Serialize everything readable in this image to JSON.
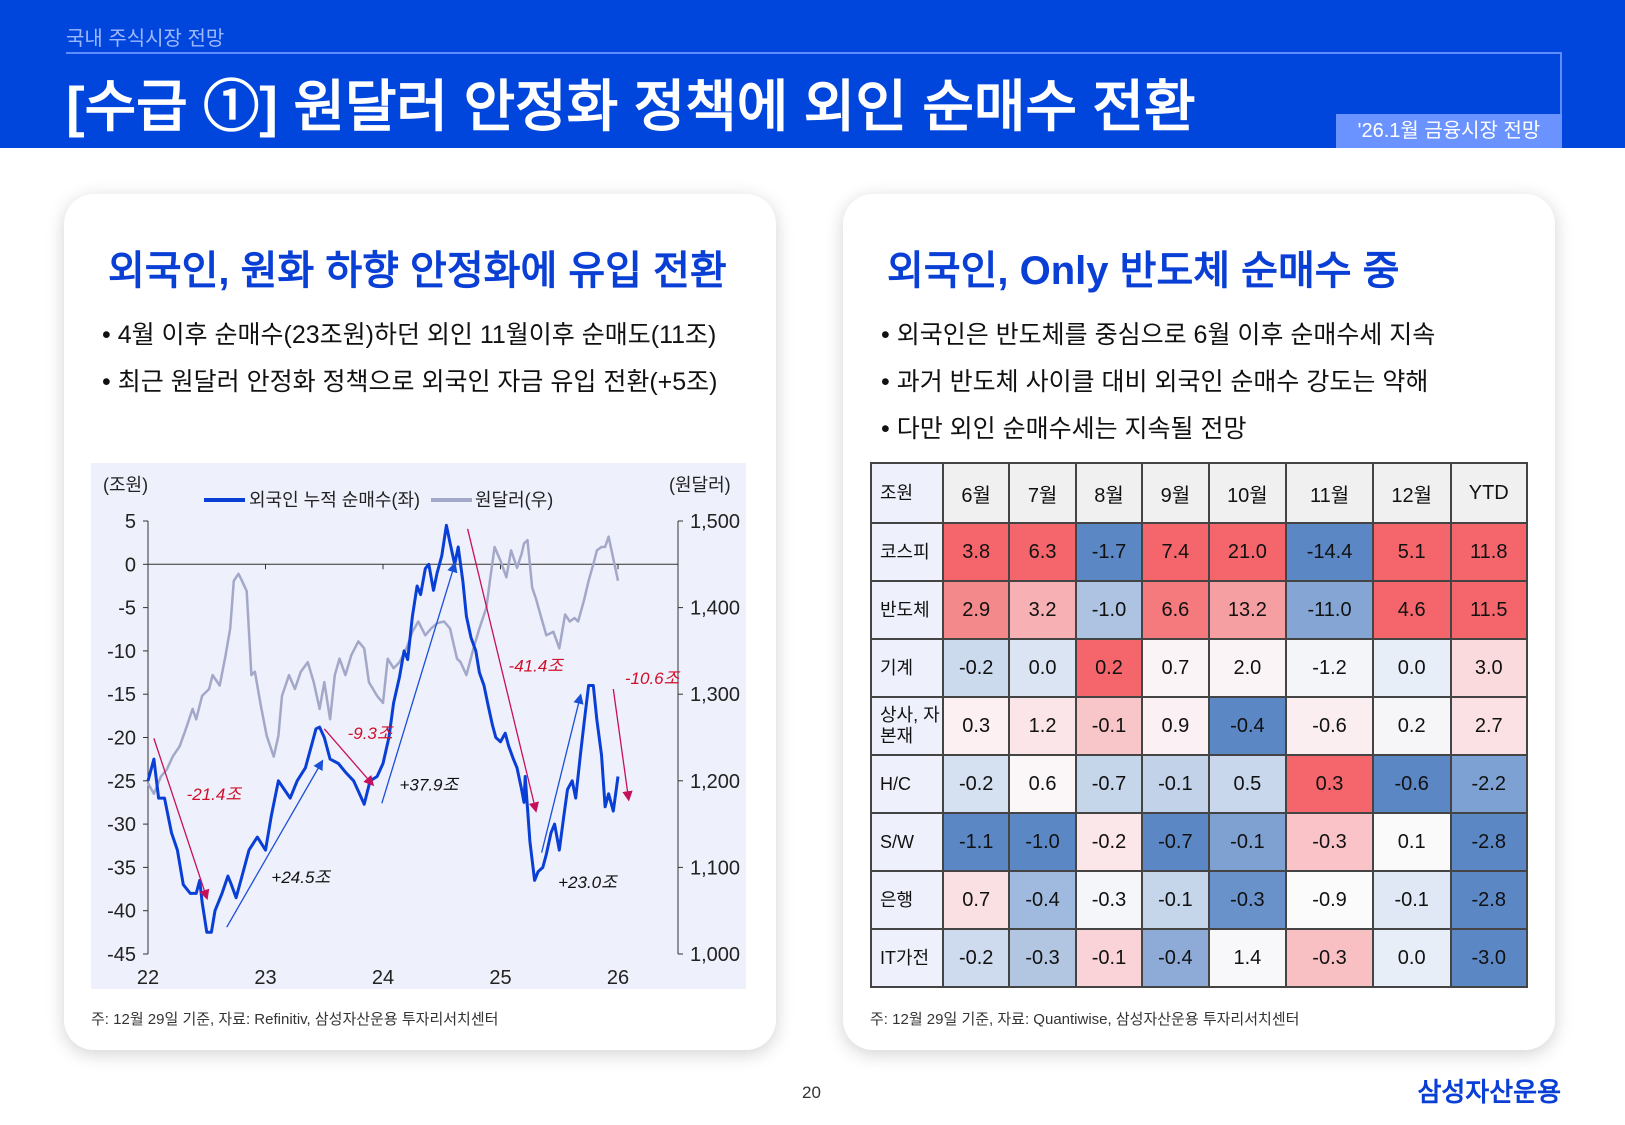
{
  "header": {
    "breadcrumb": "국내 주식시장 전망",
    "title": "[수급 ①] 원달러 안정화 정책에 외인 순매수 전환",
    "tag": "'26.1월 금융시장 전망",
    "colors": {
      "bg": "#0046dd",
      "tag": "#6b93ff"
    }
  },
  "left": {
    "heading": "외국인, 원화 하향 안정화에 유입 전환",
    "bullets": [
      "4월 이후 순매수(23조원)하던 외인 11월이후 순매도(11조)",
      "최근 원달러 안정화 정책으로 외국인 자금 유입 전환(+5조)"
    ],
    "footnote": "주: 12월 29일 기준, 자료: Refinitiv, 삼성자산운용 투자리서치센터"
  },
  "chart_data": {
    "type": "line",
    "ylabel_left": "(조원)",
    "ylabel_right": "(원달러)",
    "x_ticks": [
      "22",
      "23",
      "24",
      "25",
      "26"
    ],
    "xlim": [
      22,
      26.5
    ],
    "y_left": {
      "lim": [
        -45,
        5
      ],
      "ticks": [
        "5",
        "0",
        "-5",
        "-10",
        "-15",
        "-20",
        "-25",
        "-30",
        "-35",
        "-40",
        "-45"
      ]
    },
    "y_right": {
      "lim": [
        1000,
        1500
      ],
      "ticks": [
        "1,500",
        "1,400",
        "1,300",
        "1,200",
        "1,100",
        "1,000"
      ]
    },
    "legend_placement": "top",
    "series": [
      {
        "name": "외국인 누적 순매수(좌)",
        "axis": "left",
        "color": "#0a3fd6",
        "x": [
          22.0,
          22.05,
          22.09,
          22.14,
          22.2,
          22.25,
          22.3,
          22.36,
          22.41,
          22.44,
          22.46,
          22.5,
          22.54,
          22.57,
          22.63,
          22.68,
          22.71,
          22.75,
          22.8,
          22.86,
          22.93,
          23.0,
          23.05,
          23.11,
          23.16,
          23.21,
          23.27,
          23.34,
          23.39,
          23.43,
          23.46,
          23.5,
          23.55,
          23.62,
          23.68,
          23.75,
          23.8,
          23.84,
          23.89,
          23.95,
          24.0,
          24.05,
          24.09,
          24.14,
          24.18,
          24.21,
          24.25,
          24.29,
          24.32,
          24.36,
          24.39,
          24.43,
          24.46,
          24.5,
          24.54,
          24.57,
          24.61,
          24.64,
          24.68,
          24.71,
          24.75,
          24.79,
          24.82,
          24.86,
          24.89,
          24.93,
          24.96,
          25.0,
          25.04,
          25.07,
          25.11,
          25.14,
          25.18,
          25.2,
          25.21,
          25.25,
          25.29,
          25.32,
          25.36,
          25.39,
          25.43,
          25.46,
          25.5,
          25.54,
          25.57,
          25.61,
          25.64,
          25.68,
          25.71,
          25.75,
          25.79,
          25.82,
          25.86,
          25.89,
          25.92,
          25.96,
          26.0
        ],
        "y": [
          -25,
          -22.5,
          -27,
          -27,
          -31,
          -33,
          -37,
          -38,
          -38,
          -36.5,
          -39,
          -42.5,
          -42.5,
          -40,
          -38,
          -36,
          -37,
          -38.5,
          -36,
          -33,
          -31.5,
          -33,
          -29,
          -25,
          -26,
          -27,
          -25,
          -23.5,
          -21,
          -19,
          -18.8,
          -20,
          -22.5,
          -23,
          -24,
          -25,
          -26.5,
          -27.7,
          -25,
          -24.5,
          -23,
          -20,
          -16,
          -13,
          -10,
          -11,
          -6,
          -2.5,
          -3.5,
          -0.5,
          0,
          -3,
          -1,
          1,
          4.5,
          2.5,
          0,
          2,
          -2,
          -6,
          -8.5,
          -10,
          -12.5,
          -14,
          -16,
          -18.5,
          -20,
          -20.5,
          -19.5,
          -21,
          -22.5,
          -23.5,
          -26,
          -27.5,
          -24.5,
          -32,
          -36.5,
          -35.5,
          -35,
          -33.5,
          -31,
          -30,
          -33,
          -29,
          -26,
          -25,
          -27,
          -22,
          -18.5,
          -14,
          -14,
          -18,
          -22,
          -28,
          -26.5,
          -28.5,
          -24.5
        ]
      },
      {
        "name": "원달러(우)",
        "axis": "right",
        "color": "#a3a8c9",
        "x": [
          22.0,
          22.05,
          22.11,
          22.16,
          22.21,
          22.27,
          22.32,
          22.38,
          22.41,
          22.46,
          22.52,
          22.55,
          22.61,
          22.66,
          22.7,
          22.73,
          22.77,
          22.8,
          22.84,
          22.88,
          22.91,
          22.96,
          23.01,
          23.07,
          23.11,
          23.14,
          23.2,
          23.25,
          23.3,
          23.36,
          23.41,
          23.46,
          23.5,
          23.55,
          23.59,
          23.63,
          23.68,
          23.73,
          23.79,
          23.84,
          23.88,
          23.95,
          24.0,
          24.04,
          24.09,
          24.14,
          24.2,
          24.25,
          24.3,
          24.36,
          24.41,
          24.46,
          24.52,
          24.57,
          24.63,
          24.66,
          24.71,
          24.77,
          24.82,
          24.88,
          24.91,
          24.95,
          25.0,
          25.05,
          25.09,
          25.14,
          25.18,
          25.2,
          25.23,
          25.27,
          25.3,
          25.34,
          25.39,
          25.45,
          25.5,
          25.55,
          25.59,
          25.63,
          25.66,
          25.71,
          25.75,
          25.79,
          25.82,
          25.86,
          25.89,
          25.92,
          26.0
        ],
        "y": [
          1197,
          1185,
          1205,
          1213,
          1228,
          1240,
          1259,
          1283,
          1271,
          1298,
          1306,
          1322,
          1310,
          1345,
          1376,
          1431,
          1439,
          1431,
          1419,
          1322,
          1326,
          1287,
          1252,
          1228,
          1252,
          1298,
          1322,
          1306,
          1326,
          1337,
          1314,
          1283,
          1314,
          1271,
          1322,
          1341,
          1322,
          1345,
          1361,
          1353,
          1314,
          1298,
          1290,
          1341,
          1330,
          1337,
          1353,
          1372,
          1384,
          1368,
          1376,
          1382,
          1384,
          1376,
          1341,
          1337,
          1322,
          1353,
          1376,
          1400,
          1431,
          1470,
          1454,
          1435,
          1466,
          1446,
          1462,
          1474,
          1478,
          1423,
          1411,
          1392,
          1368,
          1372,
          1353,
          1392,
          1384,
          1388,
          1384,
          1408,
          1431,
          1450,
          1466,
          1470,
          1470,
          1482,
          1431
        ]
      }
    ],
    "annotations": [
      {
        "text": "-21.4조",
        "color": "#d0102a",
        "arrow_color": "#c8105a",
        "from": [
          22.05,
          -20.1
        ],
        "to": [
          22.5,
          -38.5
        ],
        "label_at": [
          22.56,
          -27.2
        ]
      },
      {
        "text": "-9.3조",
        "color": "#d0102a",
        "arrow_color": "#c8105a",
        "from": [
          23.5,
          -19.0
        ],
        "to": [
          23.91,
          -25.4
        ],
        "label_at": [
          23.89,
          -20.2
        ]
      },
      {
        "text": "-41.4조",
        "color": "#d0102a",
        "arrow_color": "#c8105a",
        "from": [
          24.72,
          4.1
        ],
        "to": [
          25.3,
          -28.4
        ],
        "label_at": [
          25.3,
          -12.4
        ]
      },
      {
        "text": "-10.6조",
        "color": "#d0102a",
        "arrow_color": "#c8105a",
        "from": [
          25.96,
          -14.4
        ],
        "to": [
          26.09,
          -27.1
        ],
        "label_at": [
          26.29,
          -13.8
        ]
      },
      {
        "text": "+24.5조",
        "color": "#111111",
        "arrow_color": "#1a4fd8",
        "from": [
          22.67,
          -41.9
        ],
        "to": [
          23.48,
          -22.8
        ],
        "label_at": [
          23.3,
          -36.8
        ]
      },
      {
        "text": "+37.9조",
        "color": "#111111",
        "arrow_color": "#1a4fd8",
        "from": [
          23.99,
          -27.6
        ],
        "to": [
          24.61,
          0.0
        ],
        "label_at": [
          24.39,
          -26.1
        ]
      },
      {
        "text": "+23.0조",
        "color": "#111111",
        "arrow_color": "#1a4fd8",
        "from": [
          25.35,
          -33.3
        ],
        "to": [
          25.68,
          -15.2
        ],
        "label_at": [
          25.74,
          -37.4
        ]
      }
    ]
  },
  "right": {
    "heading": "외국인, Only 반도체 순매수 중",
    "bullets": [
      "외국인은 반도체를 중심으로 6월 이후 순매수세 지속",
      "과거 반도체 사이클 대비 외국인 순매수 강도는 약해",
      "다만 외인 순매수세는 지속될 전망"
    ],
    "footnote": "주: 12월 29일 기준, 자료: Quantiwise, 삼성자산운용 투자리서치센터",
    "table": {
      "headers": [
        "조원",
        "6월",
        "7월",
        "8월",
        "9월",
        "10월",
        "11월",
        "12월",
        "YTD"
      ],
      "rows": [
        {
          "label": "코스피",
          "values": [
            "3.8",
            "6.3",
            "-1.7",
            "7.4",
            "21.0",
            "-14.4",
            "5.1",
            "11.8"
          ],
          "colors": [
            "#f4666b",
            "#f4666b",
            "#5b87c5",
            "#f4666b",
            "#f4666b",
            "#5b87c5",
            "#f4666b",
            "#f4666b"
          ]
        },
        {
          "label": "반도체",
          "values": [
            "2.9",
            "3.2",
            "-1.0",
            "6.6",
            "13.2",
            "-11.0",
            "4.6",
            "11.5"
          ],
          "colors": [
            "#f4898c",
            "#f7b1b4",
            "#aec3e1",
            "#f47a7e",
            "#f59fa2",
            "#85a5d4",
            "#f4666b",
            "#f4666b"
          ]
        },
        {
          "label": "기계",
          "values": [
            "-0.2",
            "0.0",
            "0.2",
            "0.7",
            "2.0",
            "-1.2",
            "0.0",
            "3.0"
          ],
          "colors": [
            "#ccdaee",
            "#dbe4f2",
            "#f4666b",
            "#faf4f6",
            "#faf4f6",
            "#f4f5f9",
            "#e8eef7",
            "#fadadd"
          ]
        },
        {
          "label": "상사, 자본재",
          "values": [
            "0.3",
            "1.2",
            "-0.1",
            "0.9",
            "-0.4",
            "-0.6",
            "0.2",
            "2.7"
          ],
          "colors": [
            "#fcf0f2",
            "#fbe5e8",
            "#f8c5c9",
            "#fbf0f3",
            "#5b87c5",
            "#fbeef0",
            "#f6f5f7",
            "#fbe1e4"
          ]
        },
        {
          "label": "H/C",
          "values": [
            "-0.2",
            "0.6",
            "-0.7",
            "-0.1",
            "0.5",
            "0.3",
            "-0.6",
            "-2.2"
          ],
          "colors": [
            "#d5e0f0",
            "#fbf7f8",
            "#c5d5ea",
            "#c2d3e9",
            "#c8d7eb",
            "#f4666b",
            "#5b87c5",
            "#7ea1d3"
          ]
        },
        {
          "label": "S/W",
          "values": [
            "-1.1",
            "-1.0",
            "-0.2",
            "-0.7",
            "-0.1",
            "-0.3",
            "0.1",
            "-2.8"
          ],
          "colors": [
            "#5b87c5",
            "#5b87c5",
            "#fbe6e9",
            "#5b87c5",
            "#7fa1d2",
            "#f9c3c7",
            "#fbfafb",
            "#5b87c5"
          ]
        },
        {
          "label": "은행",
          "values": [
            "0.7",
            "-0.4",
            "-0.3",
            "-0.1",
            "-0.3",
            "-0.9",
            "-0.1",
            "-2.8"
          ],
          "colors": [
            "#fbe0e3",
            "#a0b9de",
            "#f5f6fa",
            "#c5d5ea",
            "#6a92ca",
            "#fbfbfc",
            "#dfe8f4",
            "#5b87c5"
          ]
        },
        {
          "label": "IT가전",
          "values": [
            "-0.2",
            "-0.3",
            "-0.1",
            "-0.4",
            "1.4",
            "-0.3",
            "0.0",
            "-3.0"
          ],
          "colors": [
            "#cedbee",
            "#b2c6e2",
            "#f9d3d7",
            "#8eabd7",
            "#f8f8fb",
            "#f9c0c4",
            "#e8eef7",
            "#5b87c5"
          ]
        }
      ]
    }
  },
  "footer": {
    "page": "20",
    "logo": "삼성자산운용"
  }
}
